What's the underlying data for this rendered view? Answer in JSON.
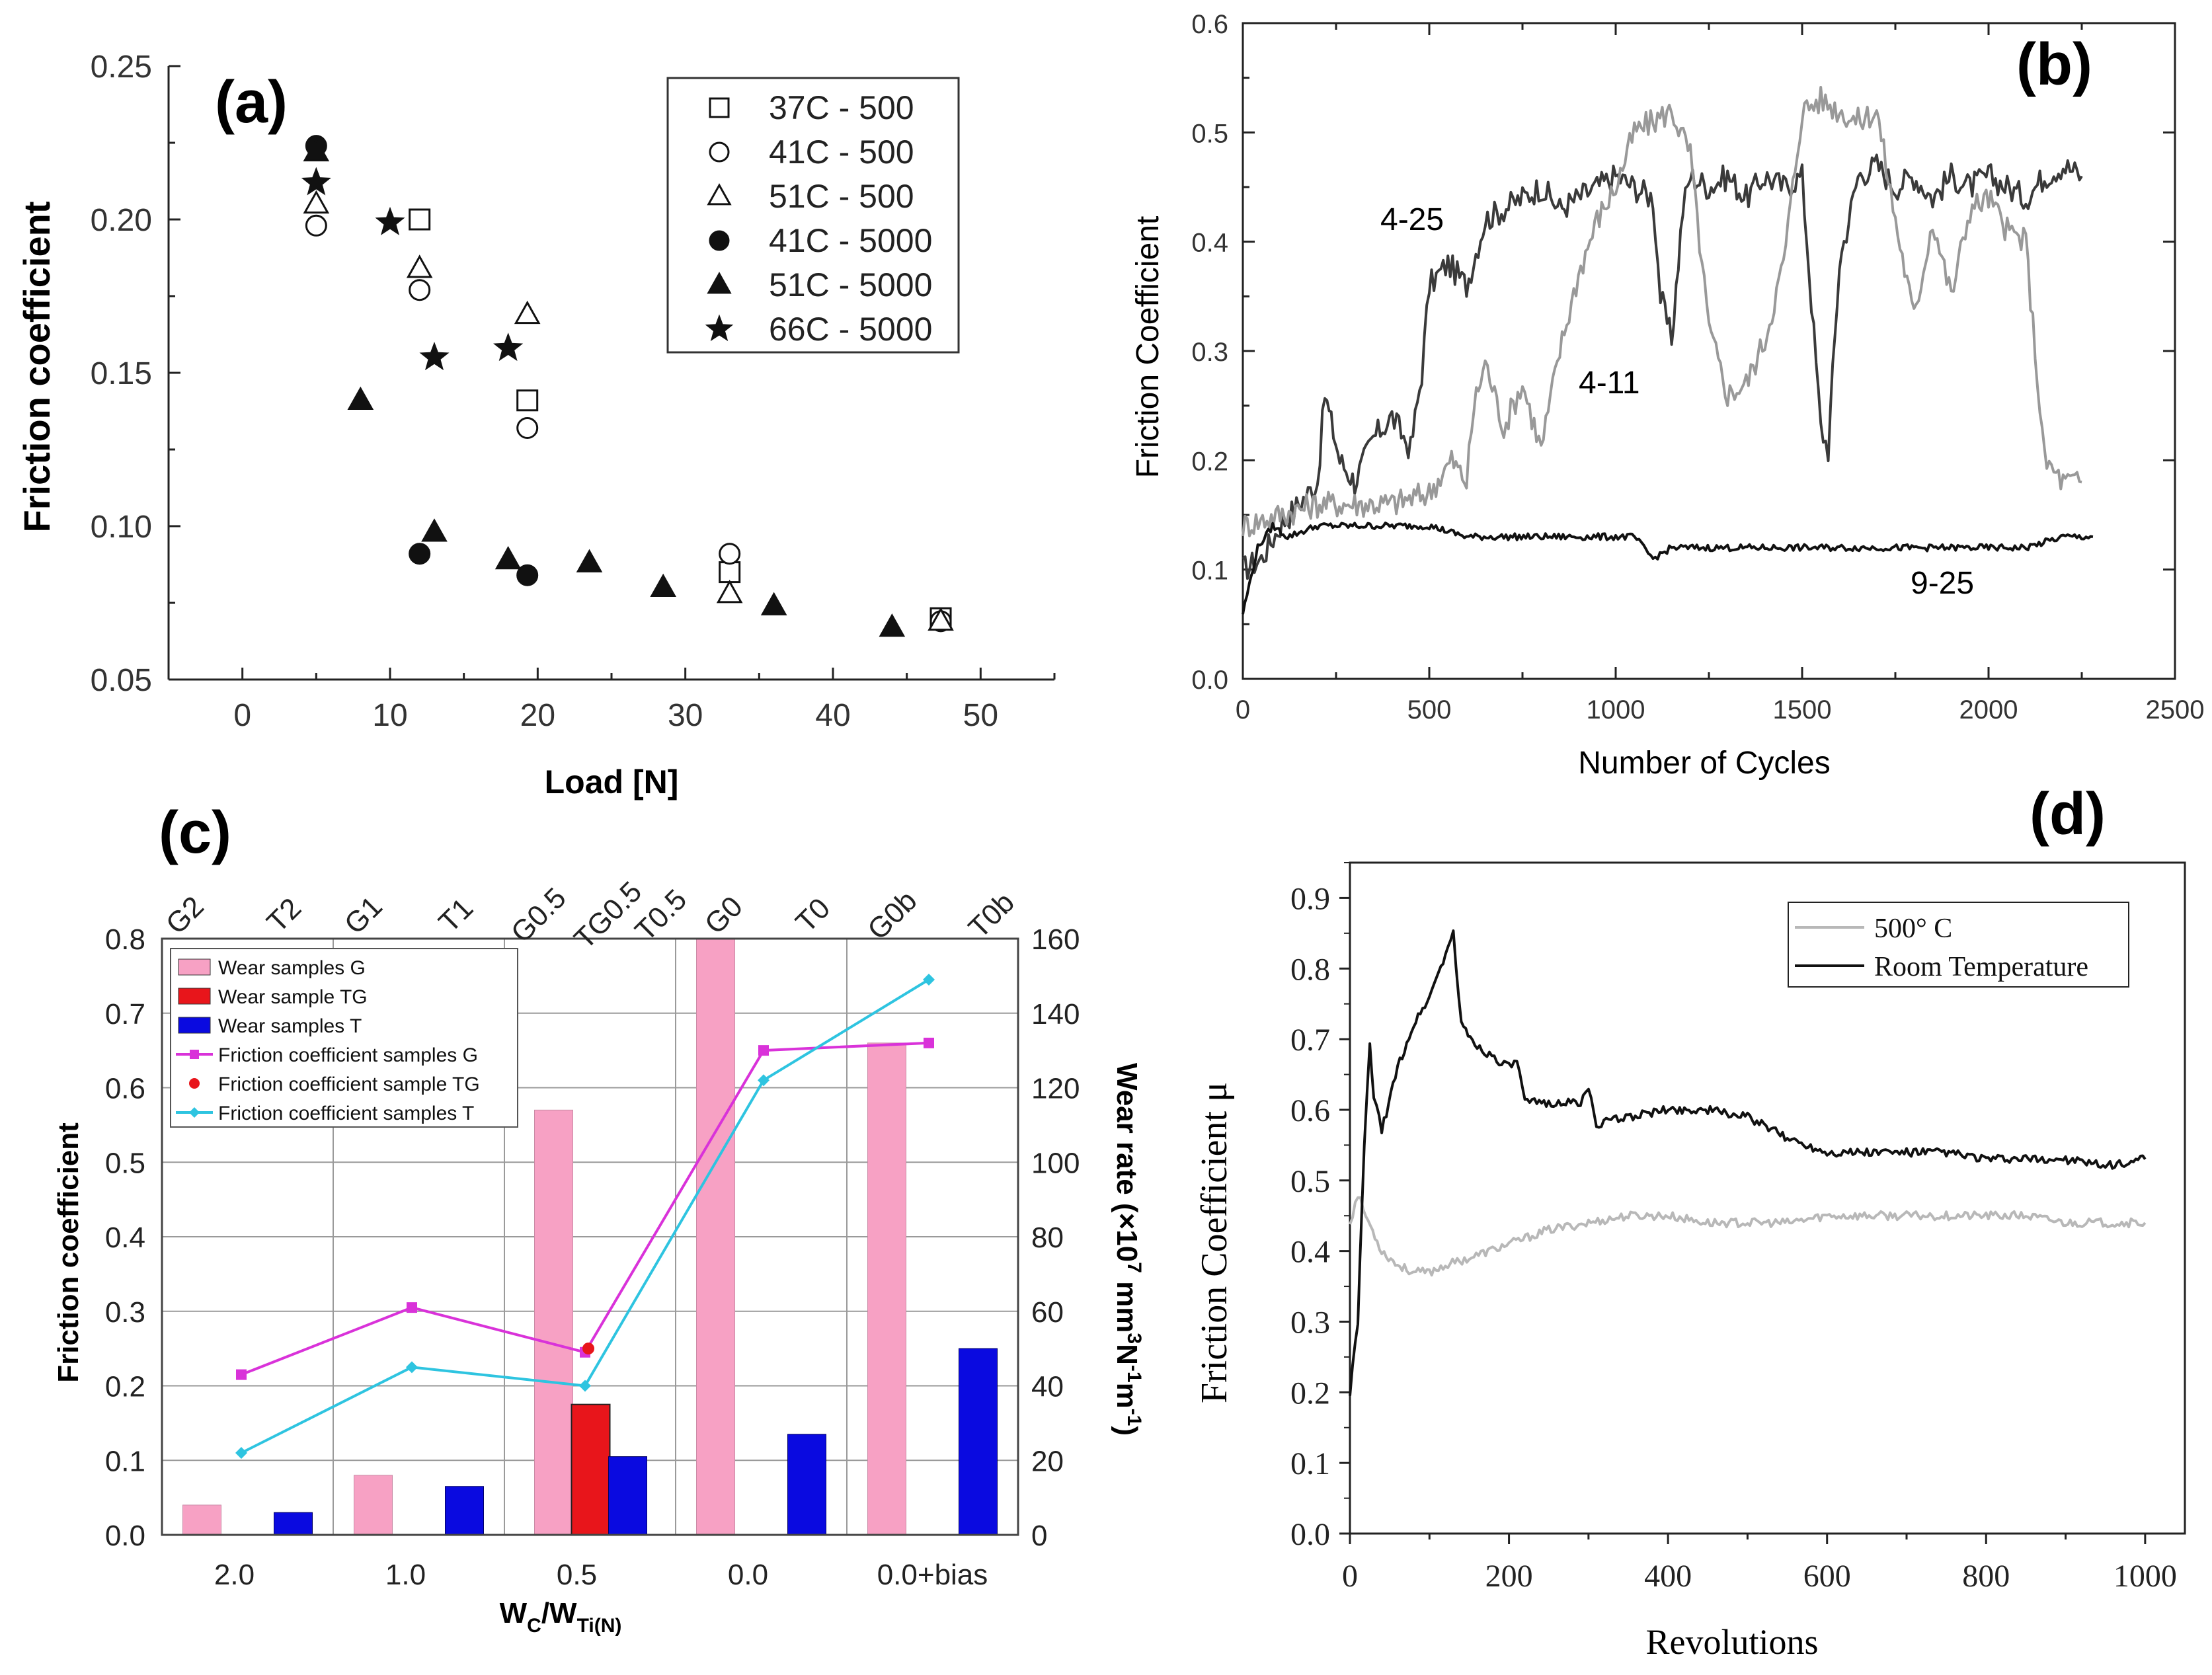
{
  "figure": {
    "panels": [
      "(a)",
      "(b)",
      "(c)",
      "(d)"
    ]
  },
  "chart_data": [
    {
      "id": "a",
      "panel_label": "(a)",
      "type": "scatter",
      "title": "",
      "xlabel": "Load [N]",
      "ylabel": "Friction coefficient",
      "xlim": [
        -5,
        55
      ],
      "ylim": [
        0.05,
        0.25
      ],
      "xticks": [
        0,
        10,
        20,
        30,
        40,
        50
      ],
      "yticks": [
        0.05,
        0.1,
        0.15,
        0.2,
        0.25
      ],
      "ytick_labels": [
        "0.05",
        "0.10",
        "0.15",
        "0.20",
        "0.25"
      ],
      "legend_position": "top-right",
      "series": [
        {
          "name": "37C - 500",
          "marker": "square-open",
          "points": [
            [
              12,
              0.2
            ],
            [
              19.3,
              0.141
            ],
            [
              33,
              0.085
            ],
            [
              47.3,
              0.07
            ]
          ]
        },
        {
          "name": "41C - 500",
          "marker": "circle-open",
          "points": [
            [
              5,
              0.198
            ],
            [
              12,
              0.177
            ],
            [
              19.3,
              0.132
            ],
            [
              33,
              0.091
            ],
            [
              47.3,
              0.069
            ]
          ]
        },
        {
          "name": "51C - 500",
          "marker": "triangle-open",
          "points": [
            [
              5,
              0.205
            ],
            [
              12,
              0.184
            ],
            [
              19.3,
              0.169
            ],
            [
              33,
              0.078
            ],
            [
              47.3,
              0.069
            ]
          ]
        },
        {
          "name": "41C - 5000",
          "marker": "circle-filled",
          "points": [
            [
              5,
              0.224
            ],
            [
              12,
              0.091
            ],
            [
              19.3,
              0.084
            ]
          ]
        },
        {
          "name": "51C - 5000",
          "marker": "triangle-filled",
          "points": [
            [
              5,
              0.222
            ],
            [
              8,
              0.141
            ],
            [
              13,
              0.098
            ],
            [
              18,
              0.089
            ],
            [
              23.5,
              0.088
            ],
            [
              28.5,
              0.08
            ],
            [
              36,
              0.074
            ],
            [
              44,
              0.067
            ]
          ]
        },
        {
          "name": "66C - 5000",
          "marker": "star-filled",
          "points": [
            [
              5,
              0.212
            ],
            [
              10,
              0.199
            ],
            [
              13,
              0.155
            ],
            [
              18,
              0.158
            ]
          ]
        }
      ]
    },
    {
      "id": "b",
      "panel_label": "(b)",
      "type": "line",
      "title": "",
      "xlabel": "Number of Cycles",
      "ylabel": "Friction Coefficient",
      "xlim": [
        0,
        2500
      ],
      "ylim": [
        0,
        0.6
      ],
      "xticks": [
        0,
        500,
        1000,
        1500,
        2000,
        2500
      ],
      "yticks": [
        0.0,
        0.1,
        0.2,
        0.3,
        0.4,
        0.5,
        0.6
      ],
      "ytick_labels": [
        "0.0",
        "0.1",
        "0.2",
        "0.3",
        "0.4",
        "0.5",
        "0.6"
      ],
      "series": [
        {
          "name": "4-25",
          "color": "#3a3a3a",
          "x": [
            0,
            50,
            100,
            150,
            200,
            220,
            260,
            300,
            350,
            400,
            450,
            480,
            500,
            550,
            600,
            650,
            700,
            750,
            800,
            850,
            900,
            950,
            1000,
            1050,
            1100,
            1120,
            1150,
            1180,
            1200,
            1250,
            1300,
            1350,
            1400,
            1450,
            1500,
            1550,
            1570,
            1600,
            1650,
            1700,
            1750,
            1800,
            1850,
            1900,
            1950,
            2000,
            2050,
            2100,
            2150,
            2200,
            2250
          ],
          "y": [
            0.1,
            0.11,
            0.14,
            0.16,
            0.18,
            0.26,
            0.2,
            0.18,
            0.22,
            0.24,
            0.21,
            0.28,
            0.36,
            0.38,
            0.36,
            0.42,
            0.43,
            0.44,
            0.45,
            0.43,
            0.44,
            0.45,
            0.46,
            0.45,
            0.44,
            0.35,
            0.31,
            0.43,
            0.46,
            0.45,
            0.46,
            0.44,
            0.46,
            0.45,
            0.46,
            0.23,
            0.21,
            0.38,
            0.46,
            0.47,
            0.45,
            0.46,
            0.44,
            0.46,
            0.45,
            0.46,
            0.45,
            0.44,
            0.46,
            0.47,
            0.46
          ]
        },
        {
          "name": "4-11",
          "color": "#999999",
          "x": [
            0,
            100,
            200,
            300,
            400,
            500,
            560,
            600,
            620,
            650,
            700,
            750,
            800,
            850,
            900,
            950,
            1000,
            1050,
            1100,
            1150,
            1200,
            1250,
            1300,
            1350,
            1400,
            1450,
            1500,
            1550,
            1600,
            1650,
            1700,
            1750,
            1800,
            1850,
            1900,
            1950,
            2000,
            2050,
            2100,
            2150,
            2200,
            2250
          ],
          "y": [
            0.14,
            0.15,
            0.16,
            0.16,
            0.16,
            0.17,
            0.2,
            0.18,
            0.25,
            0.29,
            0.23,
            0.27,
            0.21,
            0.3,
            0.37,
            0.42,
            0.45,
            0.5,
            0.51,
            0.52,
            0.48,
            0.32,
            0.26,
            0.27,
            0.31,
            0.38,
            0.52,
            0.53,
            0.52,
            0.51,
            0.52,
            0.42,
            0.33,
            0.42,
            0.35,
            0.43,
            0.44,
            0.41,
            0.4,
            0.2,
            0.18,
            0.18
          ]
        },
        {
          "name": "9-25",
          "color": "#111111",
          "x": [
            0,
            40,
            80,
            120,
            200,
            300,
            400,
            500,
            600,
            700,
            800,
            900,
            1000,
            1050,
            1100,
            1150,
            1200,
            1300,
            1400,
            1500,
            1600,
            1700,
            1800,
            1900,
            2000,
            2100,
            2200,
            2280
          ],
          "y": [
            0.06,
            0.12,
            0.14,
            0.13,
            0.14,
            0.14,
            0.14,
            0.14,
            0.13,
            0.13,
            0.13,
            0.13,
            0.13,
            0.13,
            0.11,
            0.12,
            0.12,
            0.12,
            0.12,
            0.12,
            0.12,
            0.12,
            0.12,
            0.12,
            0.12,
            0.12,
            0.13,
            0.13
          ]
        }
      ],
      "annotations": [
        "4-25",
        "4-11",
        "9-25"
      ]
    },
    {
      "id": "c",
      "panel_label": "(c)",
      "type": "bar",
      "title": "",
      "xlabel": "W",
      "xlabel_main": "W",
      "xlabel_sub_c": "C",
      "xlabel_sep": "/W",
      "xlabel_sub_ti": "Ti(N)",
      "ylabel": "Friction coefficient",
      "y2label_prefix": "Wear rate (×10",
      "y2label_exp": "7",
      "y2label_unit": " mm",
      "y2label_unit_exp": "3",
      "y2label_n": "N",
      "y2label_n_exp": "-1",
      "y2label_m": "m",
      "y2label_m_exp": "-1",
      "y2label_close": ")",
      "categories": [
        "2.0",
        "1.0",
        "0.5",
        "0.0",
        "0.0+bias"
      ],
      "top_labels": [
        "G2",
        "T2",
        "G1",
        "T1",
        "G0.5",
        "TG0.5",
        "T0.5",
        "G0",
        "T0",
        "G0b",
        "T0b"
      ],
      "ylim": [
        0,
        0.8
      ],
      "y2lim": [
        0,
        160
      ],
      "yticks": [
        0.0,
        0.1,
        0.2,
        0.3,
        0.4,
        0.5,
        0.6,
        0.7,
        0.8
      ],
      "ytick_labels": [
        "0.0",
        "0.1",
        "0.2",
        "0.3",
        "0.4",
        "0.5",
        "0.6",
        "0.7",
        "0.8"
      ],
      "y2ticks": [
        0,
        20,
        40,
        60,
        80,
        100,
        120,
        140,
        160
      ],
      "bars": [
        {
          "name": "Wear samples G",
          "color": "#f7a1c4",
          "values": [
            8,
            16,
            114,
            160,
            132
          ]
        },
        {
          "name": "Wear sample TG",
          "color": "#e8151b",
          "values": [
            null,
            null,
            35,
            null,
            null
          ]
        },
        {
          "name": "Wear samples T",
          "color": "#0a0ae0",
          "values": [
            6,
            13,
            21,
            27,
            50
          ]
        }
      ],
      "lines": [
        {
          "name": "Friction coefficient samples G",
          "color": "#d932d9",
          "marker": "square",
          "values": [
            0.215,
            0.305,
            0.245,
            0.65,
            0.66
          ]
        },
        {
          "name": "Friction coefficient  sample TG",
          "color": "#e8151b",
          "marker": "circle",
          "values": [
            null,
            null,
            0.25,
            null,
            null
          ]
        },
        {
          "name": "Friction coefficient  samples T",
          "color": "#2ec4e0",
          "marker": "diamond",
          "values": [
            0.11,
            0.225,
            0.2,
            0.61,
            0.745
          ]
        }
      ],
      "legend_position": "top-left"
    },
    {
      "id": "d",
      "panel_label": "(d)",
      "type": "line",
      "title": "",
      "xlabel": "Revolutions",
      "ylabel": "Friction Coefficient μ",
      "xlim": [
        0,
        1050
      ],
      "ylim": [
        0,
        0.95
      ],
      "xticks": [
        0,
        200,
        400,
        600,
        800,
        1000
      ],
      "yticks": [
        0.0,
        0.1,
        0.2,
        0.3,
        0.4,
        0.5,
        0.6,
        0.7,
        0.8,
        0.9
      ],
      "ytick_labels": [
        "0.0",
        "0.1",
        "0.2",
        "0.3",
        "0.4",
        "0.5",
        "0.6",
        "0.7",
        "0.8",
        "0.9"
      ],
      "legend_position": "top-right",
      "series": [
        {
          "name": "500° C",
          "color": "#b8b8b8",
          "x": [
            0,
            10,
            20,
            40,
            60,
            80,
            100,
            120,
            150,
            200,
            250,
            300,
            350,
            400,
            450,
            500,
            550,
            600,
            650,
            700,
            750,
            800,
            850,
            900,
            950,
            1000
          ],
          "y": [
            0.44,
            0.48,
            0.45,
            0.4,
            0.38,
            0.37,
            0.37,
            0.38,
            0.39,
            0.41,
            0.43,
            0.44,
            0.45,
            0.45,
            0.44,
            0.44,
            0.44,
            0.45,
            0.45,
            0.45,
            0.45,
            0.45,
            0.45,
            0.44,
            0.44,
            0.44
          ]
        },
        {
          "name": "Room Temperature",
          "color": "#111111",
          "x": [
            0,
            10,
            18,
            25,
            30,
            40,
            60,
            80,
            100,
            120,
            130,
            140,
            160,
            200,
            210,
            220,
            250,
            290,
            300,
            310,
            350,
            400,
            450,
            500,
            550,
            600,
            650,
            700,
            750,
            800,
            850,
            900,
            950,
            1000
          ],
          "y": [
            0.2,
            0.3,
            0.55,
            0.69,
            0.62,
            0.57,
            0.66,
            0.72,
            0.76,
            0.82,
            0.85,
            0.72,
            0.69,
            0.66,
            0.67,
            0.61,
            0.61,
            0.61,
            0.63,
            0.58,
            0.59,
            0.6,
            0.6,
            0.59,
            0.56,
            0.54,
            0.54,
            0.54,
            0.54,
            0.53,
            0.53,
            0.53,
            0.52,
            0.53
          ]
        }
      ]
    }
  ]
}
